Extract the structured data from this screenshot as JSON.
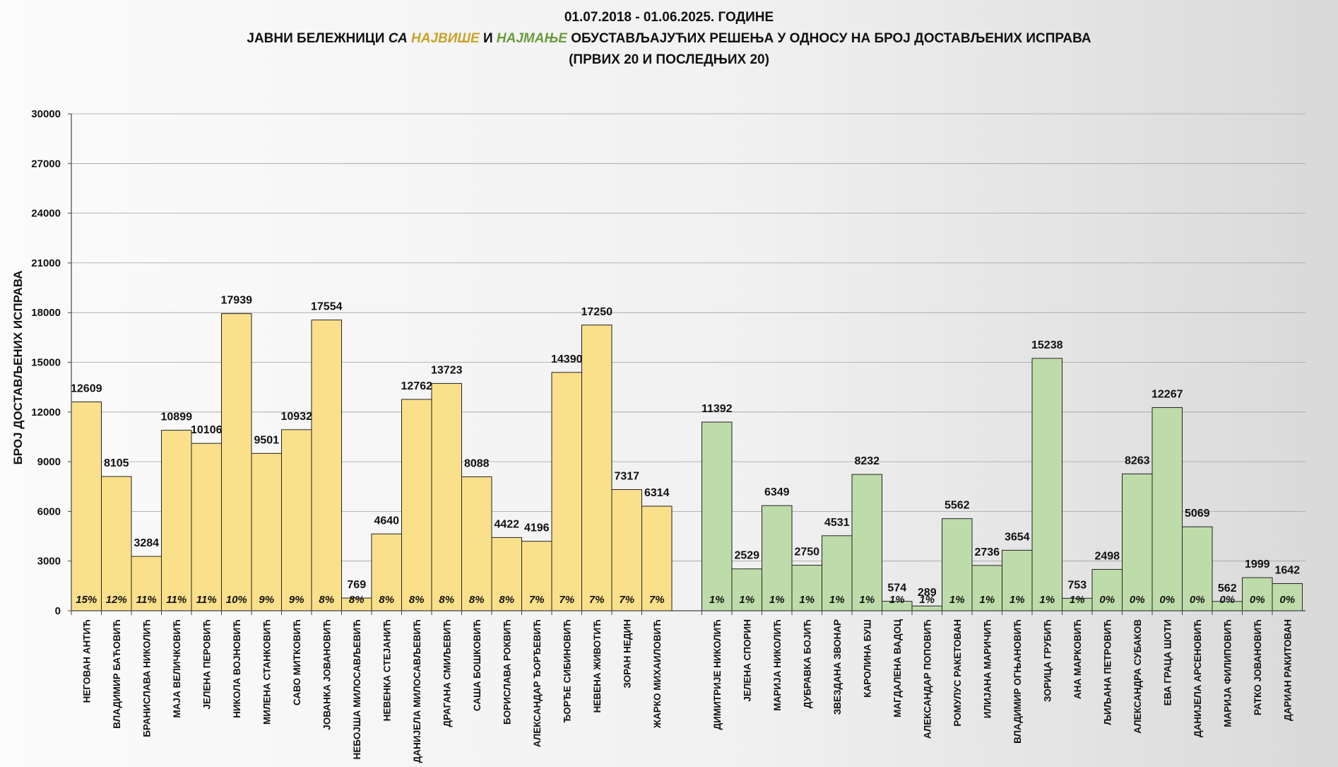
{
  "title": {
    "line1": "01.07.2018 - 01.06.2025. ГОДИНЕ",
    "line2_a": "ЈАВНИ БЕЛЕЖНИЦИ ",
    "line2_b": "СА ",
    "line2_c": "НАЈВИШЕ",
    "line2_d": " И ",
    "line2_e": "НАЈМАЊЕ",
    "line2_f": " ОБУСТАВЉАЈУЋИХ РЕШЕЊА У ОДНОСУ НА БРОЈ ДОСТАВЉЕНИХ ИСПРАВА",
    "line3": "(ПРВИХ 20 И ПОСЛЕДЊИХ 20)"
  },
  "colors": {
    "top20_fill": "#fbe08c",
    "bottom20_fill": "#bedcaa",
    "bar_stroke": "#222222",
    "grid": "#a0a0a0",
    "highlight_most": "#c9a227",
    "highlight_least": "#6a9a3d"
  },
  "chart_data": {
    "type": "bar",
    "ylabel": "БРОЈ ДОСТАВЉЕНИХ ИСПРАВА",
    "ylim": [
      0,
      30000
    ],
    "yticks": [
      0,
      3000,
      6000,
      9000,
      12000,
      15000,
      18000,
      21000,
      24000,
      27000,
      30000
    ],
    "grid": true,
    "groups": [
      {
        "name": "top20",
        "categories": [
          "НЕГОВАН АНТИЋ",
          "ВЛАДИМИР БАЋОВИЋ",
          "БРАНИСЛАВА НИКОЛИЋ",
          "МАЈА ВЕЛИЧКОВИЋ",
          "ЈЕЛЕНА ПЕРОВИЋ",
          "НИКОЛА ВОЈНОВИЋ",
          "МИЛЕНА СТАНКОВИЋ",
          "САВО МИТКОВИЋ",
          "ЈОВАНКА ЈОВАНОВИЋ",
          "НЕБОЈША МИЛОСАВЉЕВИЋ",
          "НЕВЕНКА СТЕЈАНИЋ",
          "ДАНИЈЕЛА МИЛОСАВЉЕВИЋ",
          "ДРАГАНА СМИЉЕВИЋ",
          "САША БОШКОВИЋ",
          "БОРИСЛАВА РОКВИЋ",
          "АЛЕКСАНДАР ЂОРЂЕВИЋ",
          "ЂОРЂЕ СИБИНОВИЋ",
          "НЕВЕНА ЖИВОТИЋ",
          "ЗОРАН НЕДИН",
          "ЖАРКО МИХАИЛОВИЋ"
        ],
        "values": [
          12609,
          8105,
          3284,
          10899,
          10106,
          17939,
          9501,
          10932,
          17554,
          769,
          4640,
          12762,
          13723,
          8088,
          4422,
          4196,
          14390,
          17250,
          7317,
          6314
        ],
        "percent_labels": [
          "15%",
          "12%",
          "11%",
          "11%",
          "11%",
          "10%",
          "9%",
          "9%",
          "8%",
          "8%",
          "8%",
          "8%",
          "8%",
          "8%",
          "8%",
          "7%",
          "7%",
          "7%",
          "7%",
          "7%"
        ]
      },
      {
        "name": "bottom20",
        "categories": [
          "ДИМИТРИЈЕ НИКОЛИЋ",
          "ЈЕЛЕНА СПОРИН",
          "МАРИЈА НИКОЛИЋ",
          "ДУБРАВКА БОЈИЋ",
          "ЗВЕЗДАНА ЗВОНАР",
          "КАРОЛИНА БУШ",
          "МАГДАЛЕНА ВАДОЦ",
          "АЛЕКСАНДАР ПОПОВИЋ",
          "РОМУЛУС РАКЕТОВАН",
          "ИЛИЈАНА МАРИЧИЋ",
          "ВЛАДИМИР ОГЊАНОВИЋ",
          "ЗОРИЦА ГРУБИЋ",
          "АНА МАРКОВИЋ",
          "ЉИЉАНА ПЕТРОВИЋ",
          "АЛЕКСАНДРА СУБАКОВ",
          "ЕВА ГРАЦА ШОТИ",
          "ДАНИЈЕЛА АРСЕНОВИЋ",
          "МАРИЈА ФИЛИПОВИЋ",
          "РАТКО ЈОВАНОВИЋ",
          "ДАРИАН РАКИТОВАН"
        ],
        "values": [
          11392,
          2529,
          6349,
          2750,
          4531,
          8232,
          574,
          289,
          5562,
          2736,
          3654,
          15238,
          753,
          2498,
          8263,
          12267,
          5069,
          562,
          1999,
          1642
        ],
        "percent_labels": [
          "1%",
          "1%",
          "1%",
          "1%",
          "1%",
          "1%",
          "1%",
          "1%",
          "1%",
          "1%",
          "1%",
          "1%",
          "1%",
          "0%",
          "0%",
          "0%",
          "0%",
          "0%",
          "0%",
          "0%"
        ]
      }
    ]
  }
}
